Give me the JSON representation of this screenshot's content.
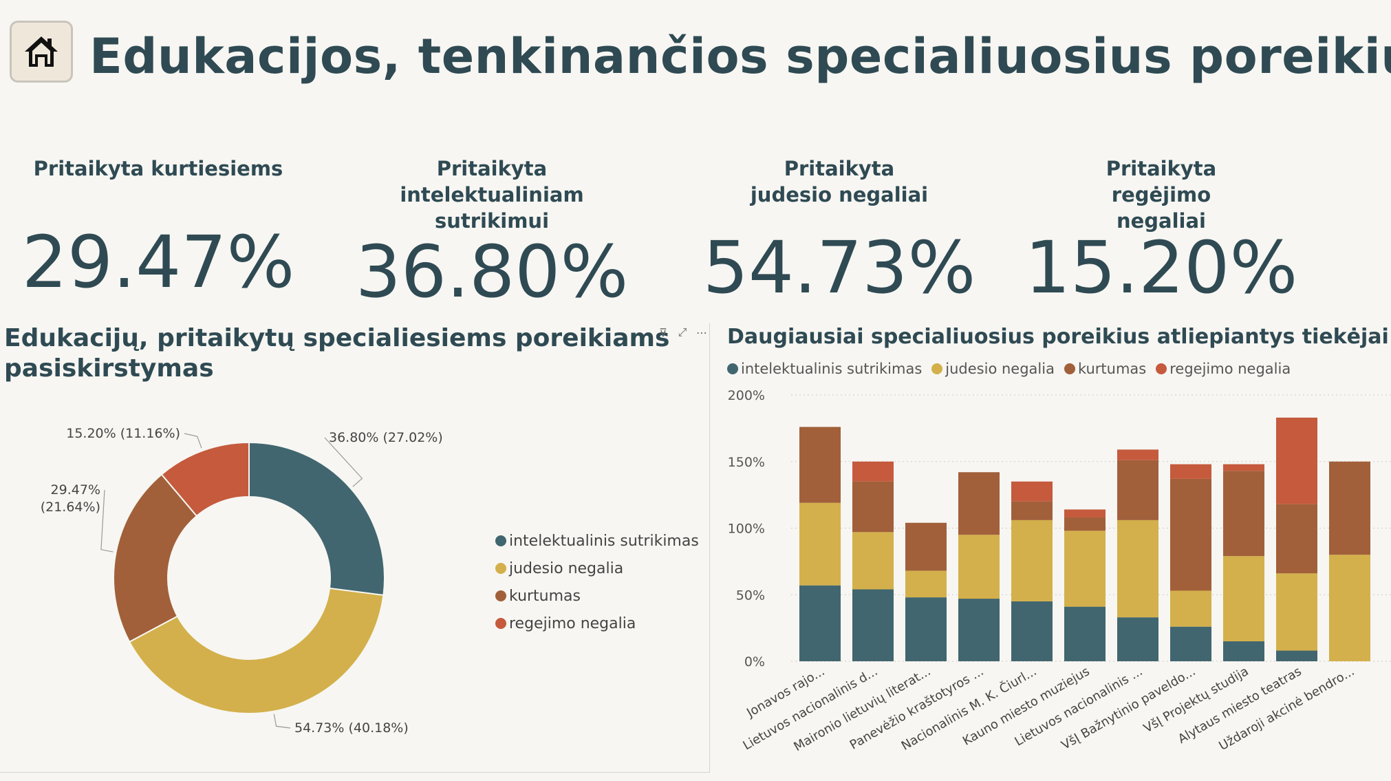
{
  "header": {
    "title": "Edukacijos, tenkinančios specialiuosius poreikius",
    "home_icon": "home-icon"
  },
  "kpis": [
    {
      "label": "Pritaikyta kurtiesiems",
      "value": "29.47%"
    },
    {
      "label": "Pritaikyta intelektualiniam sutrikimui",
      "value": "36.80%"
    },
    {
      "label": "Pritaikyta judesio negaliai",
      "value": "54.73%"
    },
    {
      "label": "Pritaikyta regėjimo negaliai",
      "value": "15.20%"
    }
  ],
  "colors": {
    "intelektualinis": "#41666f",
    "judesio": "#d3b04b",
    "kurtumas": "#a1603a",
    "regejimo": "#c55a3d"
  },
  "chart_data": [
    {
      "type": "pie",
      "title": "Edukacijų, pritaikytų specialiesiems poreikiams pasiskirstymas",
      "categories": [
        "intelektualinis sutrikimas",
        "judesio negalia",
        "kurtumas",
        "regejimo negalia"
      ],
      "values": [
        27.02,
        40.18,
        21.64,
        11.16
      ],
      "data_labels": [
        "36.80% (27.02%)",
        "54.73% (40.18%)",
        "29.47% (21.64%)",
        "15.20% (11.16%)"
      ],
      "legend": "right"
    },
    {
      "type": "bar",
      "stacked": true,
      "title": "Daugiausiai specialiuosius poreikius atliepiantys tiekėjai",
      "categories": [
        "Jonavos rajo...",
        "Lietuvos nacionalinis d...",
        "Maironio lietuvių literat...",
        "Panevėžio kraštotyros ...",
        "Nacionalinis M. K. Čiurl...",
        "Kauno miesto muziejus",
        "Lietuvos nacionalinis ...",
        "VšĮ Bažnytinio paveldo...",
        "VšĮ Projektų studija",
        "Alytaus miesto teatras",
        "Uždaroji akcinė bendro..."
      ],
      "series": [
        {
          "name": "intelektualinis sutrikimas",
          "values": [
            57,
            54,
            48,
            47,
            45,
            41,
            33,
            26,
            15,
            8,
            0
          ]
        },
        {
          "name": "judesio negalia",
          "values": [
            62,
            43,
            20,
            48,
            61,
            57,
            73,
            27,
            64,
            58,
            80
          ]
        },
        {
          "name": "kurtumas",
          "values": [
            57,
            38,
            36,
            47,
            14,
            10,
            45,
            84,
            64,
            52,
            70
          ]
        },
        {
          "name": "regejimo negalia",
          "values": [
            0,
            15,
            0,
            0,
            15,
            6,
            8,
            11,
            5,
            65,
            0
          ]
        }
      ],
      "yticks": [
        "0%",
        "50%",
        "100%",
        "150%",
        "200%"
      ],
      "ylim": [
        0,
        200
      ],
      "legend": "top-left",
      "grid": true
    }
  ]
}
